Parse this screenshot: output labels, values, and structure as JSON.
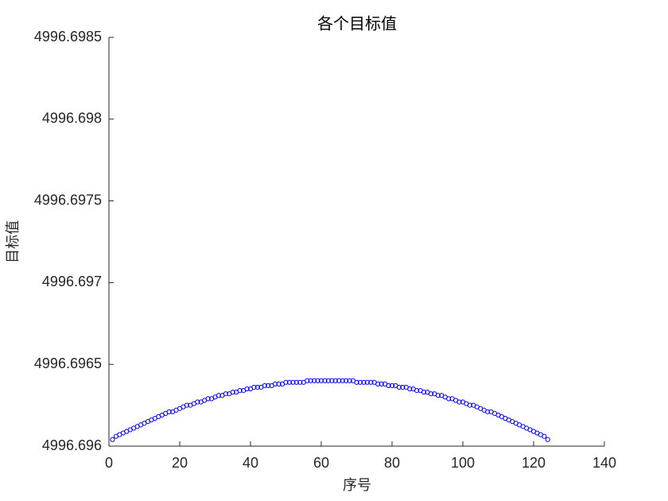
{
  "chart_data": {
    "type": "scatter",
    "title": "各个目标值",
    "x_label": "序号",
    "y_label": "目标值",
    "xlim": [
      0,
      140
    ],
    "xticks": [
      0,
      20,
      40,
      60,
      80,
      100,
      120,
      140
    ],
    "ylim": [
      4996.696,
      4996.6985
    ],
    "yticks": [
      4996.696,
      4996.6965,
      4996.697,
      4996.6975,
      4996.698,
      4996.6985
    ],
    "series": [
      {
        "color": "#0000ff",
        "x": [
          1,
          2,
          3,
          4,
          5,
          6,
          7,
          8,
          9,
          10,
          11,
          12,
          13,
          14,
          15,
          16,
          17,
          18,
          19,
          20,
          21,
          22,
          23,
          24,
          25,
          26,
          27,
          28,
          29,
          30,
          31,
          32,
          33,
          34,
          35,
          36,
          37,
          38,
          39,
          40,
          41,
          42,
          43,
          44,
          45,
          46,
          47,
          48,
          49,
          50,
          51,
          52,
          53,
          54,
          55,
          56,
          57,
          58,
          59,
          60,
          61,
          62,
          63,
          64,
          65,
          66,
          67,
          68,
          69,
          70,
          71,
          72,
          73,
          74,
          75,
          76,
          77,
          78,
          79,
          80,
          81,
          82,
          83,
          84,
          85,
          86,
          87,
          88,
          89,
          90,
          91,
          92,
          93,
          94,
          95,
          96,
          97,
          98,
          99,
          100,
          101,
          102,
          103,
          104,
          105,
          106,
          107,
          108,
          109,
          110,
          111,
          112,
          113,
          114,
          115,
          116,
          117,
          118,
          119,
          120,
          121,
          122,
          123,
          124
        ],
        "values": [
          4996.69604,
          4996.69606,
          4996.69607,
          4996.69608,
          4996.69609,
          4996.6961,
          4996.69611,
          4996.69612,
          4996.69613,
          4996.69614,
          4996.69615,
          4996.69616,
          4996.69617,
          4996.69618,
          4996.69619,
          4996.6962,
          4996.69621,
          4996.69621,
          4996.69622,
          4996.69623,
          4996.69624,
          4996.69625,
          4996.69625,
          4996.69626,
          4996.69627,
          4996.69627,
          4996.69628,
          4996.69629,
          4996.69629,
          4996.6963,
          4996.69631,
          4996.69631,
          4996.69632,
          4996.69632,
          4996.69633,
          4996.69633,
          4996.69634,
          4996.69634,
          4996.69635,
          4996.69635,
          4996.69636,
          4996.69636,
          4996.69636,
          4996.69637,
          4996.69637,
          4996.69637,
          4996.69638,
          4996.69638,
          4996.69638,
          4996.69639,
          4996.69639,
          4996.69639,
          4996.69639,
          4996.69639,
          4996.69639,
          4996.6964,
          4996.6964,
          4996.6964,
          4996.6964,
          4996.6964,
          4996.6964,
          4996.6964,
          4996.6964,
          4996.6964,
          4996.6964,
          4996.6964,
          4996.6964,
          4996.6964,
          4996.6964,
          4996.69639,
          4996.69639,
          4996.69639,
          4996.69639,
          4996.69639,
          4996.69639,
          4996.69638,
          4996.69638,
          4996.69638,
          4996.69637,
          4996.69637,
          4996.69637,
          4996.69636,
          4996.69636,
          4996.69636,
          4996.69635,
          4996.69635,
          4996.69634,
          4996.69634,
          4996.69633,
          4996.69633,
          4996.69632,
          4996.69632,
          4996.69631,
          4996.69631,
          4996.6963,
          4996.69629,
          4996.69629,
          4996.69628,
          4996.69627,
          4996.69627,
          4996.69626,
          4996.69625,
          4996.69625,
          4996.69624,
          4996.69623,
          4996.69622,
          4996.69621,
          4996.69621,
          4996.6962,
          4996.69619,
          4996.69618,
          4996.69617,
          4996.69616,
          4996.69615,
          4996.69614,
          4996.69613,
          4996.69612,
          4996.69611,
          4996.6961,
          4996.69609,
          4996.69608,
          4996.69607,
          4996.69606,
          4996.69604
        ]
      }
    ]
  }
}
